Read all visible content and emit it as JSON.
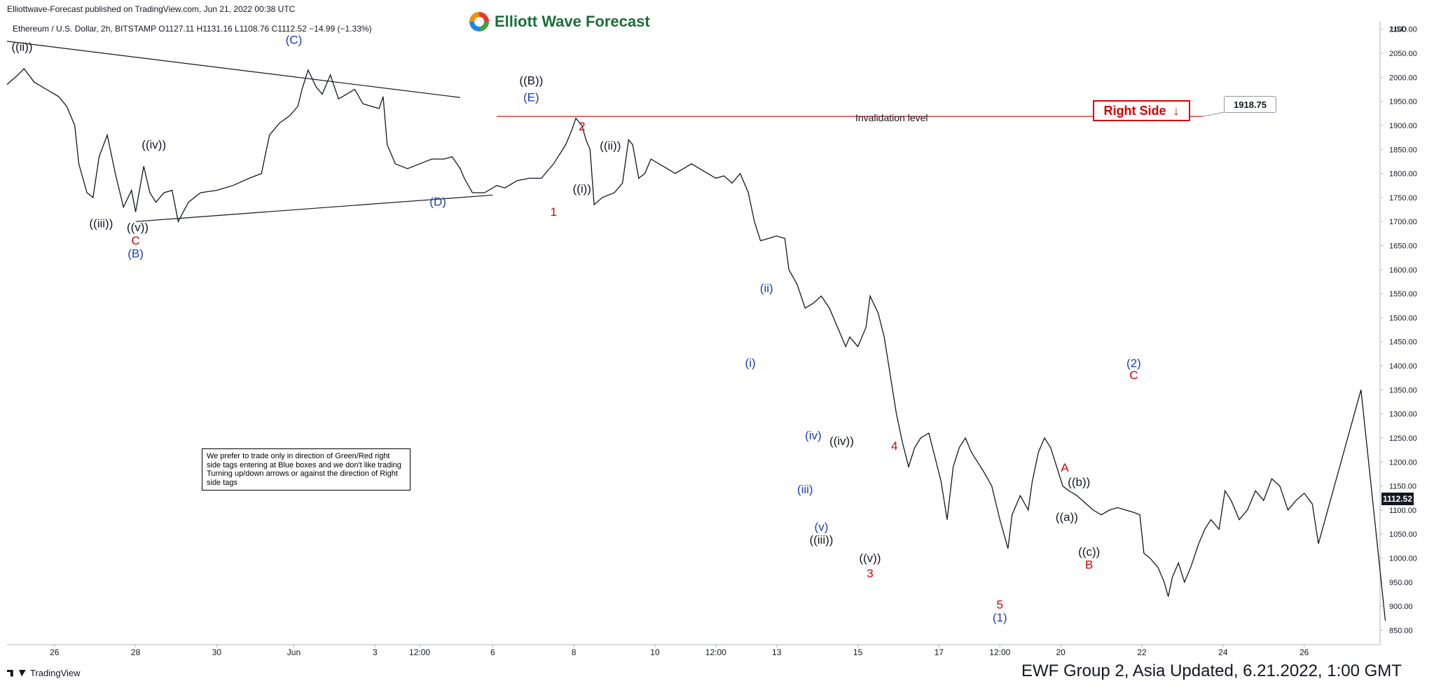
{
  "header": {
    "publisher": "Elliottwave-Forecast published on TradingView.com, Jun 21, 2022 00:38 UTC",
    "logo_text": "Elliott Wave Forecast",
    "symbol_info": "Ethereum / U.S. Dollar, 2h, BITSTAMP  O1127.11  H1131.16  L1108.76  C1112.52  −14.99 (−1.33%)"
  },
  "note_text": "We prefer to trade only in direction of Green/Red right side tags entering at Blue boxes and we don't like trading Turning up/down arrows or against the direction of Right side tags",
  "right_side_tag": "Right Side",
  "right_side_arrow": "↓",
  "invalidation_label": "Invalidation level",
  "footer_text": "EWF Group 2, Asia Updated, 6.21.2022, 1:00 GMT",
  "tradingview_label": "TradingView",
  "colors": {
    "red": "#d50000",
    "blue": "#1a3fb0",
    "black": "#131722",
    "line": "#cc1f1f"
  },
  "chart_data": {
    "type": "bar",
    "symbol": "Ethereum / U.S. Dollar",
    "interval": "2h",
    "exchange": "BITSTAMP",
    "ohlc_last": {
      "open": 1127.11,
      "high": 1131.16,
      "low": 1108.76,
      "close": 1112.52,
      "change": -14.99,
      "change_pct": -1.33
    },
    "y_axis": {
      "unit": "USD",
      "ticks": [
        850,
        900,
        950,
        1000,
        1050,
        1100,
        1150,
        1200,
        1250,
        1300,
        1350,
        1400,
        1450,
        1500,
        1550,
        1600,
        1650,
        1700,
        1750,
        1800,
        1850,
        1900,
        1950,
        2000,
        2050,
        2100
      ],
      "ylim": [
        820,
        2120
      ]
    },
    "x_axis": {
      "ticks": [
        {
          "label": "26",
          "t": 0.0
        },
        {
          "label": "28",
          "t": 2.0
        },
        {
          "label": "30",
          "t": 4.0
        },
        {
          "label": "Jun",
          "t": 5.9
        },
        {
          "label": "3",
          "t": 7.9
        },
        {
          "label": "12:00",
          "t": 9.0
        },
        {
          "label": "6",
          "t": 10.8
        },
        {
          "label": "8",
          "t": 12.8
        },
        {
          "label": "10",
          "t": 14.8
        },
        {
          "label": "12:00",
          "t": 16.3
        },
        {
          "label": "13",
          "t": 17.8
        },
        {
          "label": "15",
          "t": 19.8
        },
        {
          "label": "17",
          "t": 21.8
        },
        {
          "label": "12:00",
          "t": 23.3
        },
        {
          "label": "20",
          "t": 24.8
        },
        {
          "label": "22",
          "t": 26.8
        },
        {
          "label": "24",
          "t": 28.8
        },
        {
          "label": "26",
          "t": 30.8
        }
      ],
      "xlim": [
        -1.17,
        32.67
      ]
    },
    "last_price": "1112.52",
    "invalidation_price": "1918.75",
    "price_path": [
      [
        -1.17,
        1985
      ],
      [
        -0.9,
        2005
      ],
      [
        -0.75,
        2018
      ],
      [
        -0.5,
        1990
      ],
      [
        -0.2,
        1975
      ],
      [
        0.1,
        1960
      ],
      [
        0.3,
        1940
      ],
      [
        0.5,
        1900
      ],
      [
        0.6,
        1820
      ],
      [
        0.8,
        1760
      ],
      [
        0.95,
        1750
      ],
      [
        1.1,
        1835
      ],
      [
        1.3,
        1880
      ],
      [
        1.5,
        1800
      ],
      [
        1.7,
        1730
      ],
      [
        1.9,
        1765
      ],
      [
        2.0,
        1720
      ],
      [
        2.2,
        1815
      ],
      [
        2.35,
        1760
      ],
      [
        2.5,
        1740
      ],
      [
        2.7,
        1760
      ],
      [
        2.9,
        1765
      ],
      [
        3.05,
        1700
      ],
      [
        3.3,
        1740
      ],
      [
        3.6,
        1760
      ],
      [
        4.0,
        1765
      ],
      [
        4.4,
        1775
      ],
      [
        4.8,
        1790
      ],
      [
        5.1,
        1800
      ],
      [
        5.3,
        1880
      ],
      [
        5.55,
        1905
      ],
      [
        5.8,
        1920
      ],
      [
        6.0,
        1940
      ],
      [
        6.1,
        1975
      ],
      [
        6.25,
        2015
      ],
      [
        6.45,
        1980
      ],
      [
        6.6,
        1965
      ],
      [
        6.8,
        2005
      ],
      [
        7.0,
        1955
      ],
      [
        7.2,
        1965
      ],
      [
        7.4,
        1975
      ],
      [
        7.6,
        1945
      ],
      [
        7.8,
        1940
      ],
      [
        8.0,
        1935
      ],
      [
        8.1,
        1960
      ],
      [
        8.2,
        1860
      ],
      [
        8.4,
        1820
      ],
      [
        8.7,
        1810
      ],
      [
        9.0,
        1820
      ],
      [
        9.3,
        1830
      ],
      [
        9.6,
        1830
      ],
      [
        9.8,
        1835
      ],
      [
        10.0,
        1810
      ],
      [
        10.1,
        1790
      ],
      [
        10.3,
        1760
      ],
      [
        10.6,
        1760
      ],
      [
        10.9,
        1775
      ],
      [
        11.1,
        1770
      ],
      [
        11.4,
        1785
      ],
      [
        11.7,
        1790
      ],
      [
        12.0,
        1790
      ],
      [
        12.3,
        1820
      ],
      [
        12.45,
        1840
      ],
      [
        12.6,
        1860
      ],
      [
        12.75,
        1890
      ],
      [
        12.85,
        1915
      ],
      [
        13.0,
        1900
      ],
      [
        13.1,
        1870
      ],
      [
        13.2,
        1850
      ],
      [
        13.3,
        1735
      ],
      [
        13.5,
        1750
      ],
      [
        13.8,
        1760
      ],
      [
        14.0,
        1780
      ],
      [
        14.15,
        1870
      ],
      [
        14.25,
        1860
      ],
      [
        14.4,
        1790
      ],
      [
        14.55,
        1800
      ],
      [
        14.7,
        1830
      ],
      [
        14.9,
        1820
      ],
      [
        15.1,
        1810
      ],
      [
        15.3,
        1800
      ],
      [
        15.5,
        1810
      ],
      [
        15.7,
        1820
      ],
      [
        15.9,
        1810
      ],
      [
        16.1,
        1800
      ],
      [
        16.3,
        1790
      ],
      [
        16.5,
        1795
      ],
      [
        16.7,
        1780
      ],
      [
        16.9,
        1800
      ],
      [
        17.1,
        1760
      ],
      [
        17.25,
        1700
      ],
      [
        17.4,
        1660
      ],
      [
        17.6,
        1665
      ],
      [
        17.8,
        1670
      ],
      [
        18.0,
        1665
      ],
      [
        18.1,
        1600
      ],
      [
        18.3,
        1570
      ],
      [
        18.5,
        1520
      ],
      [
        18.7,
        1530
      ],
      [
        18.9,
        1545
      ],
      [
        19.1,
        1520
      ],
      [
        19.3,
        1480
      ],
      [
        19.5,
        1440
      ],
      [
        19.6,
        1460
      ],
      [
        19.8,
        1440
      ],
      [
        20.0,
        1480
      ],
      [
        20.1,
        1545
      ],
      [
        20.3,
        1510
      ],
      [
        20.45,
        1460
      ],
      [
        20.6,
        1380
      ],
      [
        20.75,
        1300
      ],
      [
        20.9,
        1240
      ],
      [
        21.05,
        1190
      ],
      [
        21.2,
        1230
      ],
      [
        21.35,
        1250
      ],
      [
        21.55,
        1260
      ],
      [
        21.7,
        1210
      ],
      [
        21.85,
        1160
      ],
      [
        22.0,
        1080
      ],
      [
        22.15,
        1190
      ],
      [
        22.3,
        1230
      ],
      [
        22.45,
        1250
      ],
      [
        22.6,
        1220
      ],
      [
        22.75,
        1200
      ],
      [
        22.9,
        1180
      ],
      [
        23.1,
        1150
      ],
      [
        23.3,
        1080
      ],
      [
        23.5,
        1020
      ],
      [
        23.6,
        1090
      ],
      [
        23.8,
        1130
      ],
      [
        24.0,
        1100
      ],
      [
        24.1,
        1160
      ],
      [
        24.25,
        1220
      ],
      [
        24.4,
        1250
      ],
      [
        24.55,
        1230
      ],
      [
        24.7,
        1190
      ],
      [
        24.85,
        1150
      ],
      [
        25.0,
        1140
      ],
      [
        25.2,
        1130
      ],
      [
        25.4,
        1115
      ],
      [
        25.6,
        1100
      ],
      [
        25.8,
        1090
      ],
      [
        26.0,
        1100
      ],
      [
        26.2,
        1105
      ],
      [
        26.4,
        1100
      ],
      [
        26.6,
        1095
      ],
      [
        26.75,
        1090
      ],
      [
        26.85,
        1010
      ],
      [
        27.0,
        1000
      ],
      [
        27.2,
        980
      ],
      [
        27.35,
        950
      ],
      [
        27.45,
        920
      ],
      [
        27.55,
        960
      ],
      [
        27.7,
        990
      ],
      [
        27.85,
        950
      ],
      [
        28.0,
        980
      ],
      [
        28.2,
        1030
      ],
      [
        28.35,
        1060
      ],
      [
        28.5,
        1080
      ],
      [
        28.7,
        1060
      ],
      [
        28.85,
        1140
      ],
      [
        29.0,
        1120
      ],
      [
        29.2,
        1080
      ],
      [
        29.4,
        1100
      ],
      [
        29.6,
        1140
      ],
      [
        29.8,
        1120
      ],
      [
        30.0,
        1165
      ],
      [
        30.2,
        1150
      ],
      [
        30.4,
        1100
      ],
      [
        30.6,
        1120
      ],
      [
        30.8,
        1135
      ],
      [
        31.0,
        1112.52
      ]
    ],
    "projection": [
      [
        31.0,
        1112.52
      ],
      [
        31.15,
        1030
      ],
      [
        32.2,
        1350
      ],
      [
        32.8,
        870
      ]
    ],
    "trendlines": [
      {
        "points": [
          [
            -1.17,
            2075
          ],
          [
            10.0,
            1958
          ]
        ],
        "color": "#131722"
      },
      {
        "points": [
          [
            2.0,
            1700
          ],
          [
            10.8,
            1755
          ]
        ],
        "color": "#131722"
      }
    ],
    "invalidation_line": {
      "points": [
        [
          10.9,
          1918.75
        ],
        [
          28.3,
          1918.75
        ]
      ]
    },
    "wave_labels": [
      {
        "text": "((ii))",
        "t": -0.8,
        "price": 2055,
        "color": "black"
      },
      {
        "text": "((iv))",
        "t": 2.45,
        "price": 1852,
        "color": "black"
      },
      {
        "text": "((iii))",
        "t": 1.15,
        "price": 1688,
        "color": "black"
      },
      {
        "text": "((v))",
        "t": 2.05,
        "price": 1680,
        "color": "black"
      },
      {
        "text": "C",
        "t": 2.0,
        "price": 1652,
        "color": "red"
      },
      {
        "text": "(B)",
        "t": 2.0,
        "price": 1625,
        "color": "blue"
      },
      {
        "text": "(C)",
        "t": 5.9,
        "price": 2070,
        "color": "blue"
      },
      {
        "text": "(D)",
        "t": 9.45,
        "price": 1733,
        "color": "blue"
      },
      {
        "text": "((B))",
        "t": 11.75,
        "price": 1985,
        "color": "black"
      },
      {
        "text": "(E)",
        "t": 11.75,
        "price": 1950,
        "color": "blue"
      },
      {
        "text": "2",
        "t": 13.0,
        "price": 1890,
        "color": "red"
      },
      {
        "text": "((ii))",
        "t": 13.7,
        "price": 1850,
        "color": "black"
      },
      {
        "text": "1",
        "t": 12.3,
        "price": 1712,
        "color": "red"
      },
      {
        "text": "((i))",
        "t": 13.0,
        "price": 1760,
        "color": "black"
      },
      {
        "text": "(ii)",
        "t": 17.55,
        "price": 1553,
        "color": "blue"
      },
      {
        "text": "(i)",
        "t": 17.15,
        "price": 1398,
        "color": "blue"
      },
      {
        "text": "(iv)",
        "t": 18.7,
        "price": 1247,
        "color": "blue"
      },
      {
        "text": "((iv))",
        "t": 19.4,
        "price": 1235,
        "color": "black"
      },
      {
        "text": "4",
        "t": 20.7,
        "price": 1225,
        "color": "red"
      },
      {
        "text": "(iii)",
        "t": 18.5,
        "price": 1135,
        "color": "blue"
      },
      {
        "text": "(v)",
        "t": 18.9,
        "price": 1057,
        "color": "blue"
      },
      {
        "text": "((iii))",
        "t": 18.9,
        "price": 1030,
        "color": "black"
      },
      {
        "text": "((v))",
        "t": 20.1,
        "price": 992,
        "color": "black"
      },
      {
        "text": "3",
        "t": 20.1,
        "price": 960,
        "color": "red"
      },
      {
        "text": "5",
        "t": 23.3,
        "price": 895,
        "color": "red"
      },
      {
        "text": "(1)",
        "t": 23.3,
        "price": 868,
        "color": "blue"
      },
      {
        "text": "A",
        "t": 24.9,
        "price": 1180,
        "color": "red"
      },
      {
        "text": "((b))",
        "t": 25.25,
        "price": 1150,
        "color": "black"
      },
      {
        "text": "((a))",
        "t": 24.95,
        "price": 1077,
        "color": "black"
      },
      {
        "text": "((c))",
        "t": 25.5,
        "price": 1005,
        "color": "black"
      },
      {
        "text": "B",
        "t": 25.5,
        "price": 978,
        "color": "red"
      },
      {
        "text": "(2)",
        "t": 26.6,
        "price": 1397,
        "color": "blue"
      },
      {
        "text": "C",
        "t": 26.6,
        "price": 1372,
        "color": "red"
      }
    ]
  }
}
